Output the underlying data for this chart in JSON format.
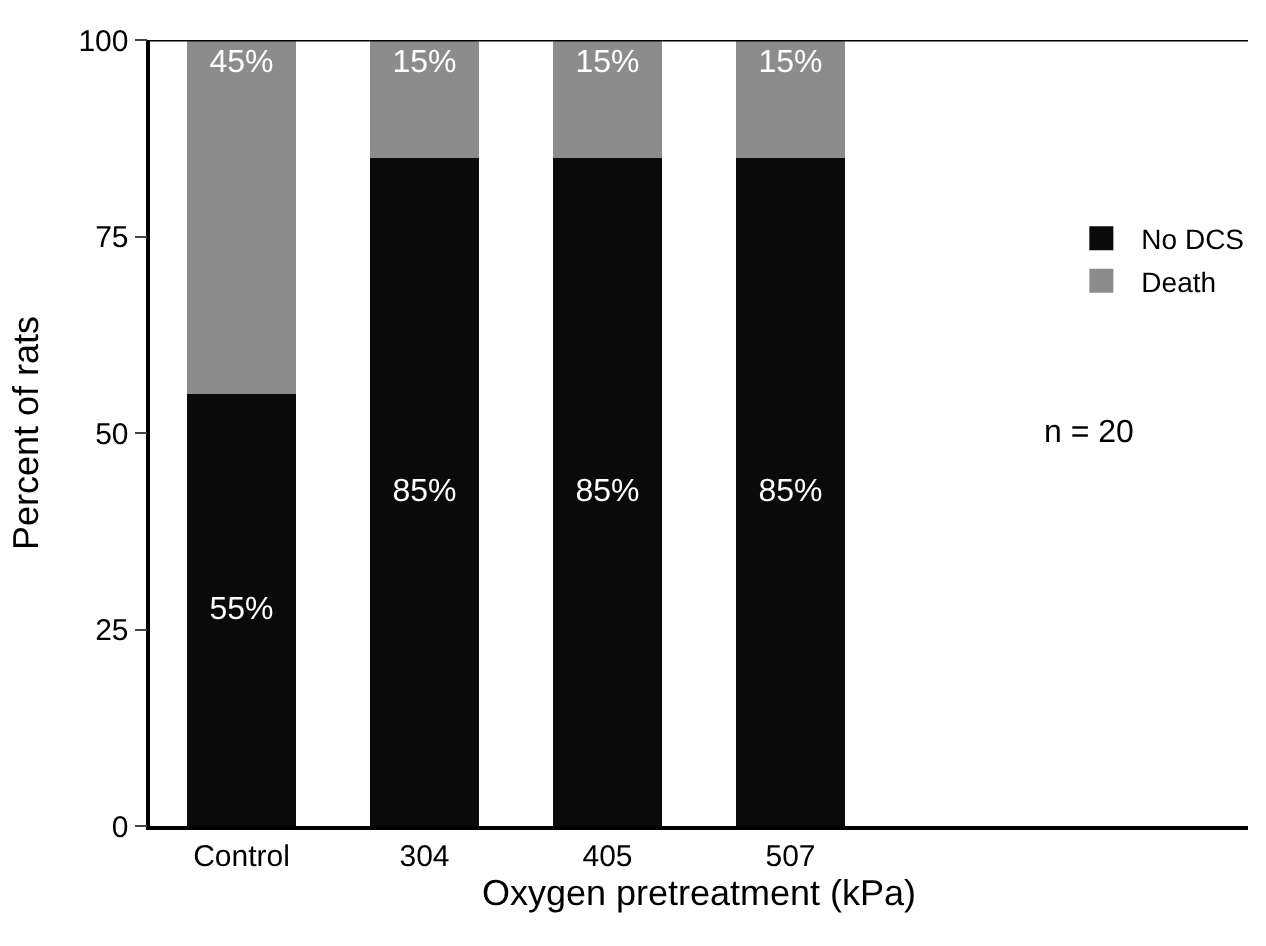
{
  "chart_data": {
    "type": "bar",
    "stacked": true,
    "xlabel": "Oxygen pretreatment (kPa)",
    "ylabel": "Percent of rats",
    "categories": [
      "Control",
      "304",
      "405",
      "507"
    ],
    "series": [
      {
        "name": "No DCS",
        "color": "#0a0a0a",
        "values": [
          55,
          85,
          85,
          85
        ],
        "value_labels": [
          "55%",
          "85%",
          "85%",
          "85%"
        ]
      },
      {
        "name": "Death",
        "color": "#8c8c8c",
        "values": [
          45,
          15,
          15,
          15
        ],
        "value_labels": [
          "45%",
          "15%",
          "15%",
          "15%"
        ]
      }
    ],
    "ylim": [
      0,
      100
    ],
    "yticks": [
      0,
      25,
      50,
      75,
      100
    ],
    "legend": "right",
    "annotations": [
      "n = 20"
    ]
  }
}
